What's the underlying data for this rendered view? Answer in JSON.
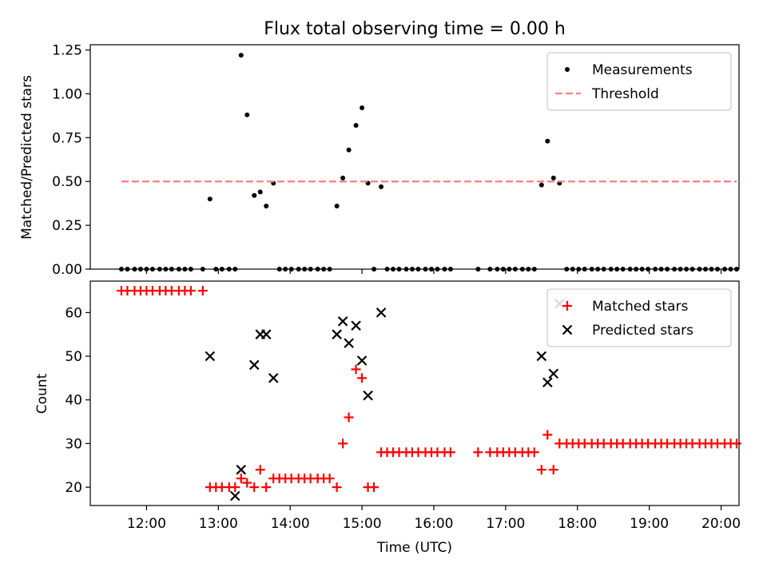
{
  "chart_data": [
    {
      "type": "scatter",
      "title": "Flux total observing time = 0.00 h",
      "xlabel": "",
      "ylabel": "Matched/Predicted stars",
      "xlim": [
        "11:13",
        "20:15"
      ],
      "ylim": [
        0,
        1.28
      ],
      "xticks": [
        "12:00",
        "13:00",
        "14:00",
        "15:00",
        "16:00",
        "17:00",
        "18:00",
        "19:00",
        "20:00"
      ],
      "yticks": [
        "0.00",
        "0.25",
        "0.50",
        "0.75",
        "1.00",
        "1.25"
      ],
      "legend_position": "top-right",
      "series": [
        {
          "name": "Measurements",
          "marker": "dot",
          "color": "#000000",
          "points": [
            [
              "11:39",
              0
            ],
            [
              "11:44",
              0
            ],
            [
              "11:50",
              0
            ],
            [
              "11:55",
              0
            ],
            [
              "12:00",
              0
            ],
            [
              "12:05",
              0
            ],
            [
              "12:11",
              0
            ],
            [
              "12:16",
              0
            ],
            [
              "12:21",
              0
            ],
            [
              "12:27",
              0
            ],
            [
              "12:32",
              0
            ],
            [
              "12:37",
              0
            ],
            [
              "12:47",
              0
            ],
            [
              "12:53",
              0.4
            ],
            [
              "12:58",
              0
            ],
            [
              "13:03",
              0
            ],
            [
              "13:09",
              0
            ],
            [
              "13:14",
              0
            ],
            [
              "13:19",
              1.22
            ],
            [
              "13:24",
              0.88
            ],
            [
              "13:30",
              0.42
            ],
            [
              "13:35",
              0.44
            ],
            [
              "13:40",
              0.36
            ],
            [
              "13:46",
              0.49
            ],
            [
              "13:51",
              0
            ],
            [
              "13:56",
              0
            ],
            [
              "14:01",
              0
            ],
            [
              "14:07",
              0
            ],
            [
              "14:12",
              0
            ],
            [
              "14:17",
              0
            ],
            [
              "14:23",
              0
            ],
            [
              "14:28",
              0
            ],
            [
              "14:33",
              0
            ],
            [
              "14:39",
              0.36
            ],
            [
              "14:44",
              0.52
            ],
            [
              "14:49",
              0.68
            ],
            [
              "14:55",
              0.82
            ],
            [
              "15:00",
              0.92
            ],
            [
              "15:05",
              0.49
            ],
            [
              "15:10",
              0
            ],
            [
              "15:16",
              0.47
            ],
            [
              "15:21",
              0
            ],
            [
              "15:26",
              0
            ],
            [
              "15:31",
              0
            ],
            [
              "15:37",
              0
            ],
            [
              "15:42",
              0
            ],
            [
              "15:47",
              0
            ],
            [
              "15:53",
              0
            ],
            [
              "15:58",
              0
            ],
            [
              "16:03",
              0
            ],
            [
              "16:09",
              0
            ],
            [
              "16:14",
              0
            ],
            [
              "16:37",
              0
            ],
            [
              "16:47",
              0
            ],
            [
              "16:53",
              0
            ],
            [
              "16:58",
              0
            ],
            [
              "17:03",
              0
            ],
            [
              "17:08",
              0
            ],
            [
              "17:14",
              0
            ],
            [
              "17:19",
              0
            ],
            [
              "17:24",
              0
            ],
            [
              "17:30",
              0.48
            ],
            [
              "17:35",
              0.73
            ],
            [
              "17:40",
              0.52
            ],
            [
              "17:45",
              0.49
            ],
            [
              "17:51",
              0
            ],
            [
              "17:56",
              0
            ],
            [
              "18:01",
              0
            ],
            [
              "18:06",
              0
            ],
            [
              "18:12",
              0
            ],
            [
              "18:17",
              0
            ],
            [
              "18:22",
              0
            ],
            [
              "18:28",
              0
            ],
            [
              "18:33",
              0
            ],
            [
              "18:38",
              0
            ],
            [
              "18:44",
              0
            ],
            [
              "18:49",
              0
            ],
            [
              "18:54",
              0
            ],
            [
              "18:59",
              0
            ],
            [
              "19:05",
              0
            ],
            [
              "19:10",
              0
            ],
            [
              "19:15",
              0
            ],
            [
              "19:21",
              0
            ],
            [
              "19:26",
              0
            ],
            [
              "19:31",
              0
            ],
            [
              "19:36",
              0
            ],
            [
              "19:42",
              0
            ],
            [
              "19:47",
              0
            ],
            [
              "19:52",
              0
            ],
            [
              "19:57",
              0
            ],
            [
              "20:03",
              0
            ],
            [
              "20:08",
              0
            ],
            [
              "20:13",
              0
            ]
          ]
        },
        {
          "name": "Threshold",
          "style": "dashed",
          "color": "#ff7f7f",
          "points": [
            [
              "11:39",
              0.5
            ],
            [
              "20:13",
              0.5
            ]
          ]
        }
      ]
    },
    {
      "type": "scatter",
      "title": "",
      "xlabel": "Time (UTC)",
      "ylabel": "Count",
      "xlim": [
        "11:13",
        "20:15"
      ],
      "ylim": [
        15.8,
        67.2
      ],
      "xticks": [
        "12:00",
        "13:00",
        "14:00",
        "15:00",
        "16:00",
        "17:00",
        "18:00",
        "19:00",
        "20:00"
      ],
      "yticks": [
        "20",
        "30",
        "40",
        "50",
        "60"
      ],
      "legend_position": "top-right",
      "series": [
        {
          "name": "Matched stars",
          "marker": "plus",
          "color": "#ff0000",
          "points": [
            [
              "11:39",
              65
            ],
            [
              "11:44",
              65
            ],
            [
              "11:50",
              65
            ],
            [
              "11:55",
              65
            ],
            [
              "12:00",
              65
            ],
            [
              "12:05",
              65
            ],
            [
              "12:11",
              65
            ],
            [
              "12:16",
              65
            ],
            [
              "12:21",
              65
            ],
            [
              "12:27",
              65
            ],
            [
              "12:32",
              65
            ],
            [
              "12:37",
              65
            ],
            [
              "12:47",
              65
            ],
            [
              "12:53",
              20
            ],
            [
              "12:58",
              20
            ],
            [
              "13:03",
              20
            ],
            [
              "13:09",
              20
            ],
            [
              "13:14",
              20
            ],
            [
              "13:19",
              22
            ],
            [
              "13:24",
              21
            ],
            [
              "13:30",
              20
            ],
            [
              "13:35",
              24
            ],
            [
              "13:40",
              20
            ],
            [
              "13:46",
              22
            ],
            [
              "13:51",
              22
            ],
            [
              "13:56",
              22
            ],
            [
              "14:01",
              22
            ],
            [
              "14:07",
              22
            ],
            [
              "14:12",
              22
            ],
            [
              "14:17",
              22
            ],
            [
              "14:23",
              22
            ],
            [
              "14:28",
              22
            ],
            [
              "14:33",
              22
            ],
            [
              "14:39",
              20
            ],
            [
              "14:44",
              30
            ],
            [
              "14:49",
              36
            ],
            [
              "14:55",
              47
            ],
            [
              "15:00",
              45
            ],
            [
              "15:05",
              20
            ],
            [
              "15:10",
              20
            ],
            [
              "15:16",
              28
            ],
            [
              "15:21",
              28
            ],
            [
              "15:26",
              28
            ],
            [
              "15:31",
              28
            ],
            [
              "15:37",
              28
            ],
            [
              "15:42",
              28
            ],
            [
              "15:47",
              28
            ],
            [
              "15:53",
              28
            ],
            [
              "15:58",
              28
            ],
            [
              "16:03",
              28
            ],
            [
              "16:09",
              28
            ],
            [
              "16:14",
              28
            ],
            [
              "16:37",
              28
            ],
            [
              "16:47",
              28
            ],
            [
              "16:53",
              28
            ],
            [
              "16:58",
              28
            ],
            [
              "17:03",
              28
            ],
            [
              "17:08",
              28
            ],
            [
              "17:14",
              28
            ],
            [
              "17:19",
              28
            ],
            [
              "17:24",
              28
            ],
            [
              "17:30",
              24
            ],
            [
              "17:35",
              32
            ],
            [
              "17:40",
              24
            ],
            [
              "17:45",
              30
            ],
            [
              "17:51",
              30
            ],
            [
              "17:56",
              30
            ],
            [
              "18:01",
              30
            ],
            [
              "18:06",
              30
            ],
            [
              "18:12",
              30
            ],
            [
              "18:17",
              30
            ],
            [
              "18:22",
              30
            ],
            [
              "18:28",
              30
            ],
            [
              "18:33",
              30
            ],
            [
              "18:38",
              30
            ],
            [
              "18:44",
              30
            ],
            [
              "18:49",
              30
            ],
            [
              "18:54",
              30
            ],
            [
              "18:59",
              30
            ],
            [
              "19:05",
              30
            ],
            [
              "19:10",
              30
            ],
            [
              "19:15",
              30
            ],
            [
              "19:21",
              30
            ],
            [
              "19:26",
              30
            ],
            [
              "19:31",
              30
            ],
            [
              "19:36",
              30
            ],
            [
              "19:42",
              30
            ],
            [
              "19:47",
              30
            ],
            [
              "19:52",
              30
            ],
            [
              "19:57",
              30
            ],
            [
              "20:03",
              30
            ],
            [
              "20:08",
              30
            ],
            [
              "20:13",
              30
            ]
          ]
        },
        {
          "name": "Predicted stars",
          "marker": "x",
          "color": "#000000",
          "points": [
            [
              "12:53",
              50
            ],
            [
              "13:14",
              18
            ],
            [
              "13:19",
              24
            ],
            [
              "13:30",
              48
            ],
            [
              "13:35",
              55
            ],
            [
              "13:40",
              55
            ],
            [
              "13:46",
              45
            ],
            [
              "14:39",
              55
            ],
            [
              "14:44",
              58
            ],
            [
              "14:49",
              53
            ],
            [
              "14:55",
              57
            ],
            [
              "15:00",
              49
            ],
            [
              "15:05",
              41
            ],
            [
              "15:16",
              60
            ],
            [
              "17:30",
              50
            ],
            [
              "17:35",
              44
            ],
            [
              "17:40",
              46
            ],
            [
              "17:45",
              62
            ]
          ]
        }
      ]
    }
  ]
}
